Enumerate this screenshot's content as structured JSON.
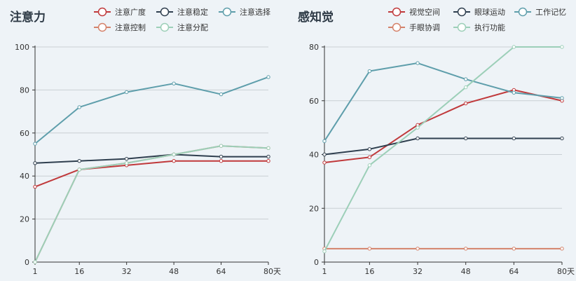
{
  "chart_data": [
    {
      "type": "line",
      "title": "注意力",
      "x": [
        1,
        16,
        32,
        48,
        64,
        80
      ],
      "x_tick_labels": [
        "1",
        "16",
        "32",
        "48",
        "64",
        "80"
      ],
      "x_unit": "天",
      "ylim": [
        0,
        100
      ],
      "y_ticks": [
        0,
        20,
        40,
        60,
        80,
        100
      ],
      "grid": true,
      "legend_position": "top-right",
      "series": [
        {
          "name": "注意广度",
          "color": "#c0393b",
          "values": [
            35,
            43,
            45,
            47,
            47,
            47
          ]
        },
        {
          "name": "注意稳定",
          "color": "#2f3f4f",
          "values": [
            46,
            47,
            48,
            50,
            49,
            49
          ]
        },
        {
          "name": "注意选择",
          "color": "#5e9eab",
          "values": [
            55,
            72,
            79,
            83,
            78,
            86
          ]
        },
        {
          "name": "注意控制",
          "color": "#d4826a",
          "values": [
            0,
            43,
            46,
            50,
            54,
            53
          ]
        },
        {
          "name": "注意分配",
          "color": "#9ccfb8",
          "values": [
            0,
            43,
            46,
            50,
            54,
            53
          ]
        }
      ]
    },
    {
      "type": "line",
      "title": "感知觉",
      "x": [
        1,
        16,
        32,
        48,
        64,
        80
      ],
      "x_tick_labels": [
        "1",
        "16",
        "32",
        "48",
        "64",
        "80"
      ],
      "x_unit": "天",
      "ylim": [
        0,
        80
      ],
      "y_ticks": [
        0,
        20,
        40,
        60,
        80
      ],
      "grid": true,
      "legend_position": "top-right",
      "series": [
        {
          "name": "视觉空间",
          "color": "#c0393b",
          "values": [
            37,
            39,
            51,
            59,
            64,
            60
          ]
        },
        {
          "name": "眼球运动",
          "color": "#2f3f4f",
          "values": [
            40,
            42,
            46,
            46,
            46,
            46
          ]
        },
        {
          "name": "工作记忆",
          "color": "#5e9eab",
          "values": [
            45,
            71,
            74,
            68,
            63,
            61
          ]
        },
        {
          "name": "手眼协调",
          "color": "#d4826a",
          "values": [
            5,
            5,
            5,
            5,
            5,
            5
          ]
        },
        {
          "name": "执行功能",
          "color": "#9ccfb8",
          "values": [
            4,
            36,
            50,
            65,
            80,
            80
          ]
        }
      ]
    }
  ]
}
